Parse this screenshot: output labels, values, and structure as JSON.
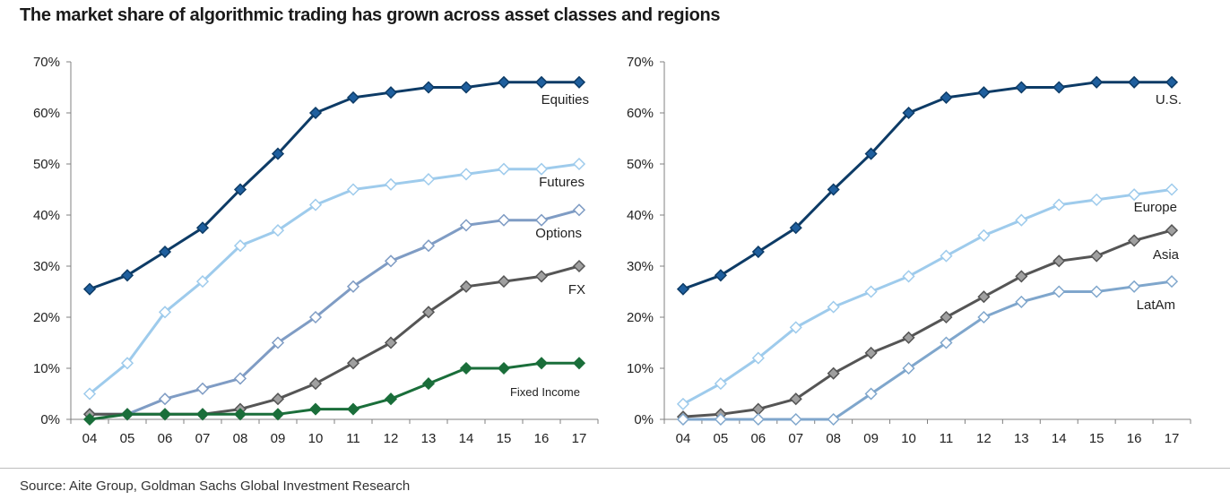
{
  "title": "The market share of algorithmic trading has grown across asset classes and regions",
  "source": "Source: Aite Group, Goldman Sachs Global Investment Research",
  "chart_data": [
    {
      "type": "line",
      "categories": [
        "04",
        "05",
        "06",
        "07",
        "08",
        "09",
        "10",
        "11",
        "12",
        "13",
        "14",
        "15",
        "16",
        "17"
      ],
      "ylim": [
        0,
        70
      ],
      "yticks": [
        "0%",
        "10%",
        "20%",
        "30%",
        "40%",
        "50%",
        "60%",
        "70%"
      ],
      "grid": false,
      "series": [
        {
          "name": "Equities",
          "color": "#0d3b66",
          "marker_fill": "#1f5f9e",
          "values": [
            25.5,
            28.2,
            32.8,
            37.5,
            45,
            52,
            60,
            63,
            64,
            65,
            65,
            66,
            66,
            66
          ]
        },
        {
          "name": "Futures",
          "color": "#9ecbec",
          "marker_fill": "#ffffff",
          "values": [
            5,
            11,
            21,
            27,
            34,
            37,
            42,
            45,
            46,
            47,
            48,
            49,
            49,
            50
          ]
        },
        {
          "name": "Options",
          "color": "#7f9cc4",
          "marker_fill": "#ffffff",
          "values": [
            1,
            1,
            4,
            6,
            8,
            15,
            20,
            26,
            31,
            34,
            38,
            39,
            39,
            41
          ]
        },
        {
          "name": "FX",
          "color": "#555555",
          "marker_fill": "#a0a0a0",
          "values": [
            1,
            1,
            1,
            1,
            2,
            4,
            7,
            11,
            15,
            21,
            26,
            27,
            28,
            30
          ]
        },
        {
          "name": "Fixed Income",
          "color": "#1a6e3a",
          "marker_fill": "#1a6e3a",
          "values": [
            0,
            1,
            1,
            1,
            1,
            1,
            2,
            2,
            4,
            7,
            10,
            10,
            11,
            11
          ]
        }
      ]
    },
    {
      "type": "line",
      "categories": [
        "04",
        "05",
        "06",
        "07",
        "08",
        "09",
        "10",
        "11",
        "12",
        "13",
        "14",
        "15",
        "16",
        "17"
      ],
      "ylim": [
        0,
        70
      ],
      "yticks": [
        "0%",
        "10%",
        "20%",
        "30%",
        "40%",
        "50%",
        "60%",
        "70%"
      ],
      "grid": false,
      "series": [
        {
          "name": "U.S.",
          "color": "#0d3b66",
          "marker_fill": "#1f5f9e",
          "values": [
            25.5,
            28.2,
            32.8,
            37.5,
            45,
            52,
            60,
            63,
            64,
            65,
            65,
            66,
            66,
            66
          ]
        },
        {
          "name": "Europe",
          "color": "#9ecbec",
          "marker_fill": "#ffffff",
          "values": [
            3,
            7,
            12,
            18,
            22,
            25,
            28,
            32,
            36,
            39,
            42,
            43,
            44,
            45
          ]
        },
        {
          "name": "Asia",
          "color": "#555555",
          "marker_fill": "#a0a0a0",
          "values": [
            0.5,
            1,
            2,
            4,
            9,
            13,
            16,
            20,
            24,
            28,
            31,
            32,
            35,
            37
          ]
        },
        {
          "name": "LatAm",
          "color": "#7fa6cc",
          "marker_fill": "#ffffff",
          "values": [
            0,
            0,
            0,
            0,
            0,
            5,
            10,
            15,
            20,
            23,
            25,
            25,
            26,
            27
          ]
        }
      ]
    }
  ]
}
